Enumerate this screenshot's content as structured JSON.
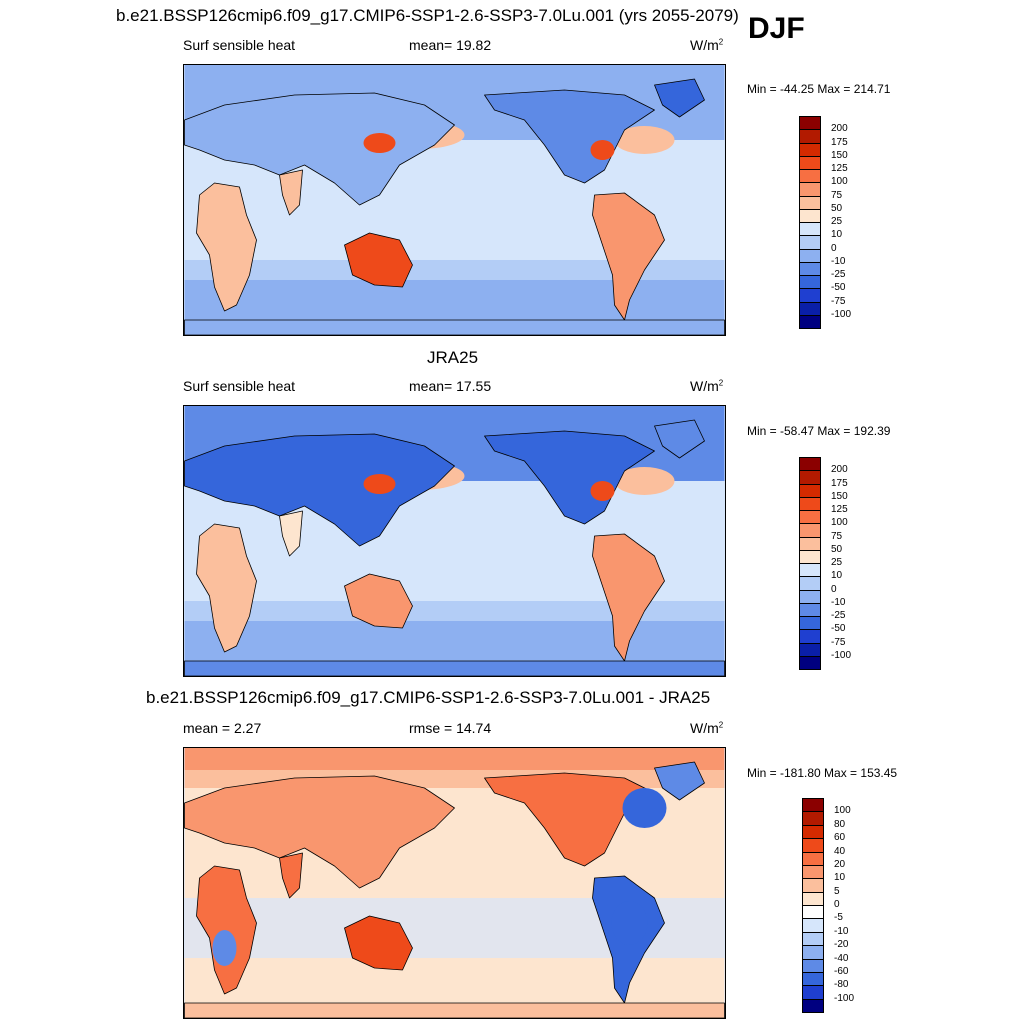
{
  "season": "DJF",
  "panels": [
    {
      "title": "b.e21.BSSP126cmip6.f09_g17.CMIP6-SSP1-2.6-SSP3-7.0Lu.001 (yrs 2055-2079)",
      "left": "Surf sensible heat",
      "middle": "mean=  19.82",
      "units_base": "W/m",
      "units_exp": "2",
      "minmax": "Min = -44.25 Max = 214.71",
      "scale": "abs"
    },
    {
      "title": "JRA25",
      "left": "Surf sensible heat",
      "middle": "mean=  17.55",
      "units_base": "W/m",
      "units_exp": "2",
      "minmax": "Min = -58.47 Max = 192.39",
      "scale": "abs"
    },
    {
      "title": "b.e21.BSSP126cmip6.f09_g17.CMIP6-SSP1-2.6-SSP3-7.0Lu.001 - JRA25",
      "left": "mean =   2.27",
      "middle": "rmse =  14.74",
      "units_base": "W/m",
      "units_exp": "2",
      "minmax": "Min = -181.80 Max = 153.45",
      "scale": "diff"
    }
  ],
  "colorbars": {
    "abs": {
      "labels": [
        "200",
        "175",
        "150",
        "125",
        "100",
        "75",
        "50",
        "25",
        "10",
        "0",
        "-10",
        "-25",
        "-50",
        "-75",
        "-100"
      ],
      "colors": [
        "#8b0000",
        "#b21a00",
        "#d42a00",
        "#ee4a1a",
        "#f76f42",
        "#f9966e",
        "#fbbf9d",
        "#fde5cf",
        "#d6e6fb",
        "#b3cdf6",
        "#8db0f0",
        "#5e8ae6",
        "#3566db",
        "#1f3fd0",
        "#0a1fa8",
        "#000080"
      ]
    },
    "diff": {
      "labels": [
        "100",
        "80",
        "60",
        "40",
        "20",
        "10",
        "5",
        "0",
        "-5",
        "-10",
        "-20",
        "-40",
        "-60",
        "-80",
        "-100"
      ],
      "colors": [
        "#8b0000",
        "#b21a00",
        "#d42a00",
        "#ee4a1a",
        "#f76f42",
        "#f9966e",
        "#fbbf9d",
        "#fde5cf",
        "#fefefe",
        "#d6e6fb",
        "#b3cdf6",
        "#8db0f0",
        "#5e8ae6",
        "#3566db",
        "#1f3fd0",
        "#000080"
      ]
    }
  }
}
